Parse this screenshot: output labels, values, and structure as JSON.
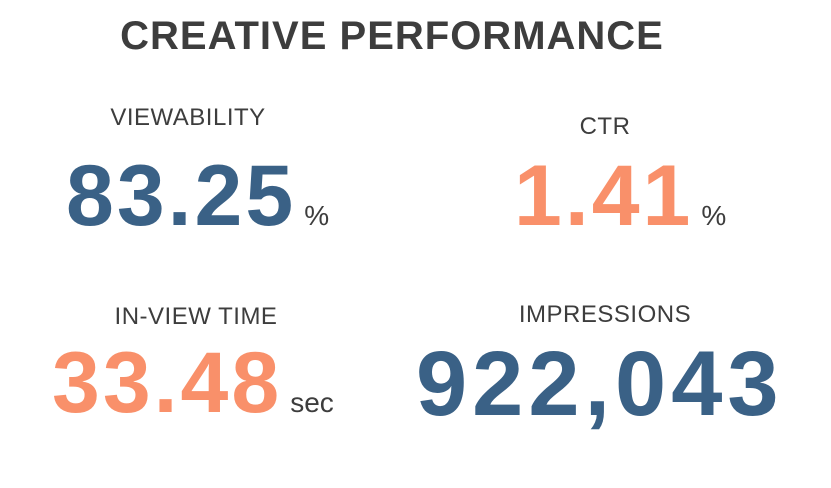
{
  "title": "CREATIVE PERFORMANCE",
  "metrics": [
    {
      "label": "VIEWABILITY",
      "value": "83.25",
      "unit": "%",
      "color": "#3a6186"
    },
    {
      "label": "CTR",
      "value": "1.41",
      "unit": "%",
      "color": "#f9906a"
    },
    {
      "label": "IN-VIEW TIME",
      "value": "33.48",
      "unit": "sec",
      "color": "#f9906a"
    },
    {
      "label": "IMPRESSIONS",
      "value": "922,043",
      "unit": null,
      "color": "#3a6186"
    }
  ]
}
